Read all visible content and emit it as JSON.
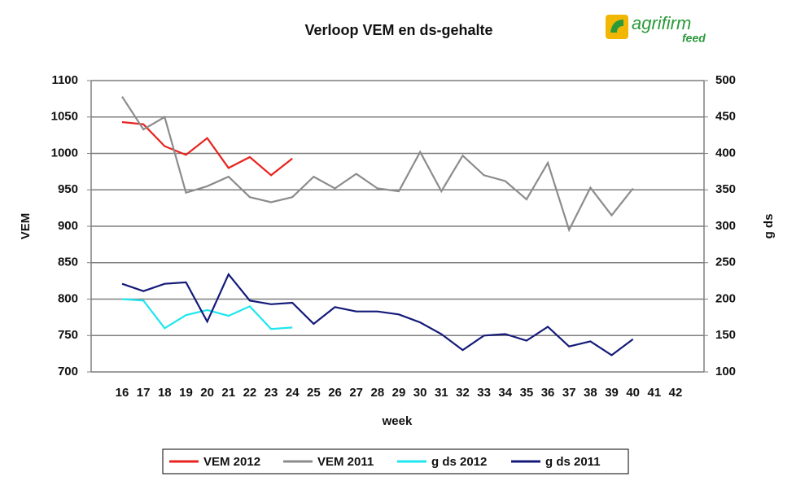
{
  "logo": {
    "name": "agrifirm",
    "sub": "feed"
  },
  "chart_data": {
    "type": "line",
    "title": "Verloop VEM en ds-gehalte",
    "xlabel": "week",
    "ylabel": "VEM",
    "y2label": "g ds",
    "categories": [
      "16",
      "17",
      "18",
      "19",
      "20",
      "21",
      "22",
      "23",
      "24",
      "25",
      "26",
      "27",
      "28",
      "29",
      "30",
      "31",
      "32",
      "33",
      "34",
      "35",
      "36",
      "37",
      "38",
      "39",
      "40",
      "41",
      "42"
    ],
    "ylim": [
      700,
      1100
    ],
    "yticks": [
      700,
      750,
      800,
      850,
      900,
      950,
      1000,
      1050,
      1100
    ],
    "y2lim": [
      100,
      500
    ],
    "y2ticks": [
      100,
      150,
      200,
      250,
      300,
      350,
      400,
      450,
      500
    ],
    "grid": true,
    "legend": "bottom",
    "series": [
      {
        "name": "VEM 2012",
        "color": "#e8231e",
        "values": [
          1043,
          1040,
          1010,
          998,
          1021,
          980,
          995,
          970,
          993,
          null,
          null,
          null,
          null,
          null,
          null,
          null,
          null,
          null,
          null,
          null,
          null,
          null,
          null,
          null,
          null,
          null,
          null
        ]
      },
      {
        "name": "VEM 2011",
        "color": "#8c8c8c",
        "values": [
          1078,
          1033,
          1050,
          946,
          955,
          968,
          940,
          933,
          940,
          968,
          952,
          972,
          952,
          948,
          1002,
          948,
          997,
          970,
          962,
          937,
          987,
          895,
          953,
          915,
          952,
          null,
          null
        ]
      },
      {
        "name": "g ds 2012",
        "color": "#1ee6ef",
        "axis": "y2",
        "values": [
          200,
          198,
          160,
          178,
          185,
          177,
          190,
          159,
          161,
          null,
          null,
          null,
          null,
          null,
          null,
          null,
          null,
          null,
          null,
          null,
          null,
          null,
          null,
          null,
          null,
          null,
          null
        ]
      },
      {
        "name": "g ds 2011",
        "color": "#141a78",
        "axis": "y2",
        "values": [
          221,
          211,
          221,
          223,
          169,
          234,
          198,
          193,
          195,
          166,
          189,
          183,
          183,
          179,
          168,
          152,
          130,
          150,
          152,
          143,
          162,
          135,
          142,
          123,
          145,
          null,
          null
        ]
      }
    ]
  }
}
